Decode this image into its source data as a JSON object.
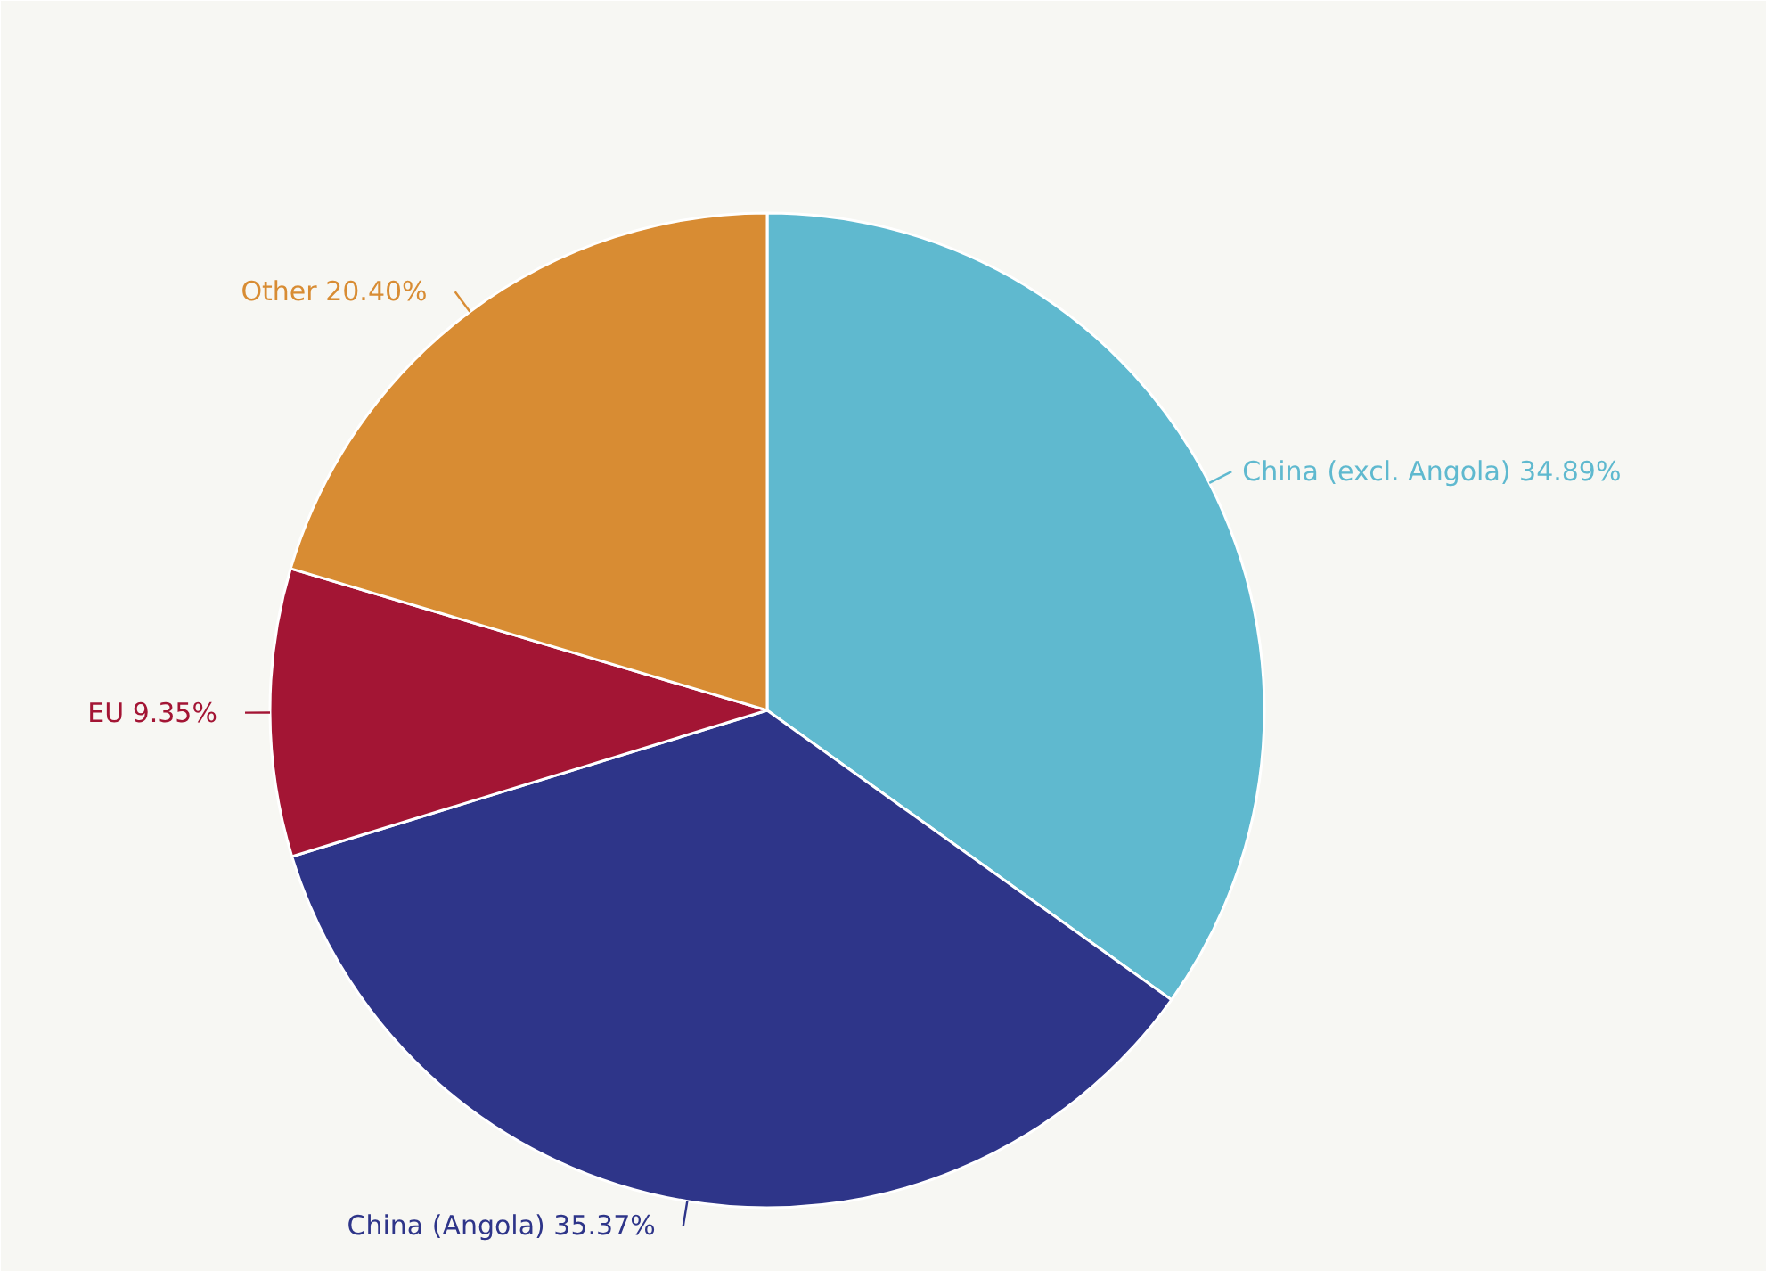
{
  "chart_data": {
    "type": "pie",
    "categories": [
      "China (excl. Angola)",
      "China (Angola)",
      "EU",
      "Other"
    ],
    "values": [
      34.89,
      35.37,
      9.35,
      20.4
    ],
    "colors": [
      "#5fb9cf",
      "#2e3589",
      "#a31534",
      "#d88c33"
    ],
    "value_labels": [
      "34.89%",
      "35.37%",
      "9.35%",
      "20.40%"
    ]
  }
}
